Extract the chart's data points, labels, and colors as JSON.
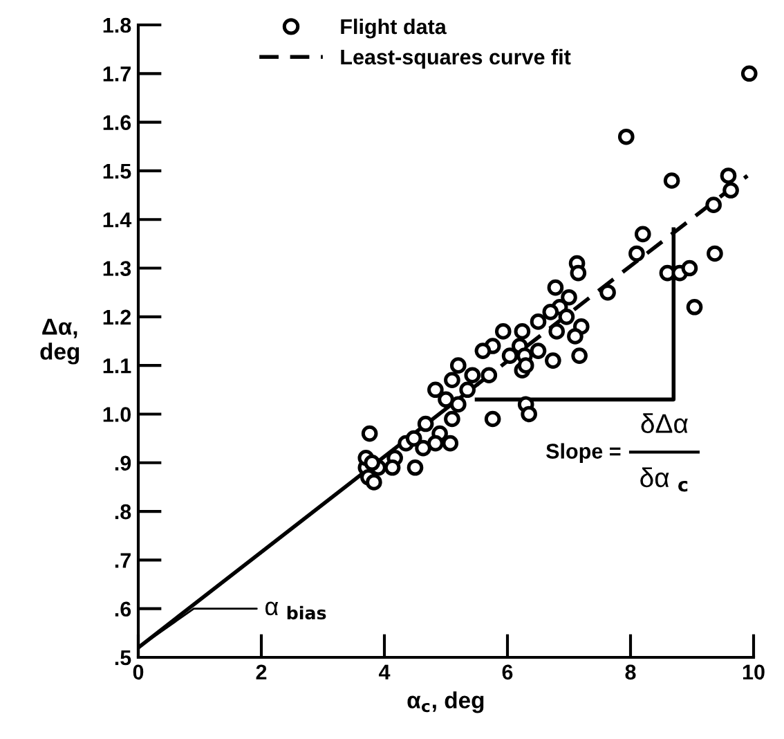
{
  "chart_data": {
    "type": "scatter",
    "xlabel": "α$_{c}$, deg",
    "ylabel": "Δα,\ndeg",
    "xlim": [
      0,
      10
    ],
    "ylim": [
      0.5,
      1.8
    ],
    "xticks": [
      0,
      2,
      4,
      6,
      8,
      10
    ],
    "yticks": [
      {
        "value": 0.5,
        "label": ".5"
      },
      {
        "value": 0.6,
        "label": ".6"
      },
      {
        "value": 0.7,
        "label": ".7"
      },
      {
        "value": 0.8,
        "label": ".8"
      },
      {
        "value": 0.9,
        "label": ".9"
      },
      {
        "value": 1.0,
        "label": "1.0"
      },
      1.1,
      1.2,
      1.3,
      1.4,
      1.5,
      1.6,
      1.7,
      1.8
    ],
    "grid": false,
    "legend": "top",
    "marker": "circle",
    "series": [
      {
        "name": "Flight data",
        "color": "#000000",
        "x": [
          9.93,
          7.93,
          8.67,
          9.59,
          9.63,
          9.35,
          8.2,
          8.1,
          9.37,
          8.6,
          8.8,
          8.96,
          9.04,
          7.63,
          7.13,
          7.15,
          6.78,
          7.0,
          6.85,
          6.96,
          7.2,
          6.8,
          7.1,
          6.7,
          6.5,
          6.24,
          6.24,
          6.2,
          6.28,
          5.93,
          5.76,
          6.04,
          5.6,
          5.7,
          6.3,
          6.5,
          6.74,
          7.17,
          6.3,
          6.35,
          5.76,
          5.35,
          5.2,
          5.43,
          5.1,
          5.2,
          4.83,
          5.0,
          4.67,
          4.9,
          4.63,
          5.1,
          4.83,
          5.07,
          4.35,
          4.48,
          4.17,
          3.9,
          4.13,
          3.7,
          4.5,
          3.76,
          3.7,
          3.74,
          3.83,
          3.8
        ],
        "values": [
          1.7,
          1.57,
          1.48,
          1.49,
          1.46,
          1.43,
          1.37,
          1.33,
          1.33,
          1.29,
          1.29,
          1.3,
          1.22,
          1.25,
          1.31,
          1.29,
          1.26,
          1.24,
          1.22,
          1.2,
          1.18,
          1.17,
          1.16,
          1.21,
          1.19,
          1.17,
          1.09,
          1.14,
          1.12,
          1.17,
          1.14,
          1.12,
          1.13,
          1.08,
          1.1,
          1.13,
          1.11,
          1.12,
          1.02,
          1.0,
          0.99,
          1.05,
          1.02,
          1.08,
          1.07,
          1.1,
          1.05,
          1.03,
          0.98,
          0.96,
          0.93,
          0.99,
          0.94,
          0.94,
          0.94,
          0.95,
          0.91,
          0.89,
          0.89,
          0.89,
          0.89,
          0.96,
          0.91,
          0.87,
          0.86,
          0.9
        ]
      },
      {
        "name": "Least-squares curve fit",
        "type": "line",
        "color": "#000000",
        "line_style": "dashed",
        "marker": "none",
        "x": [
          5.5,
          9.9
        ],
        "values": [
          1.06,
          1.49
        ]
      },
      {
        "type": "line",
        "color": "#000000",
        "line_style": "solid",
        "marker": "none",
        "x": [
          0,
          5.5
        ],
        "values": [
          0.52,
          1.06
        ]
      },
      {
        "type": "line",
        "color": "#000000",
        "line_style": "solid",
        "marker": "none",
        "x": [
          5.5,
          8.7,
          8.7
        ],
        "values": [
          1.03,
          1.03,
          1.38
        ]
      }
    ],
    "annotations": [
      {
        "text": "α $_{bias}$",
        "x": 0,
        "y": 0.52
      },
      "Slope =",
      "δΔα",
      "δα $_{c}$"
    ]
  }
}
